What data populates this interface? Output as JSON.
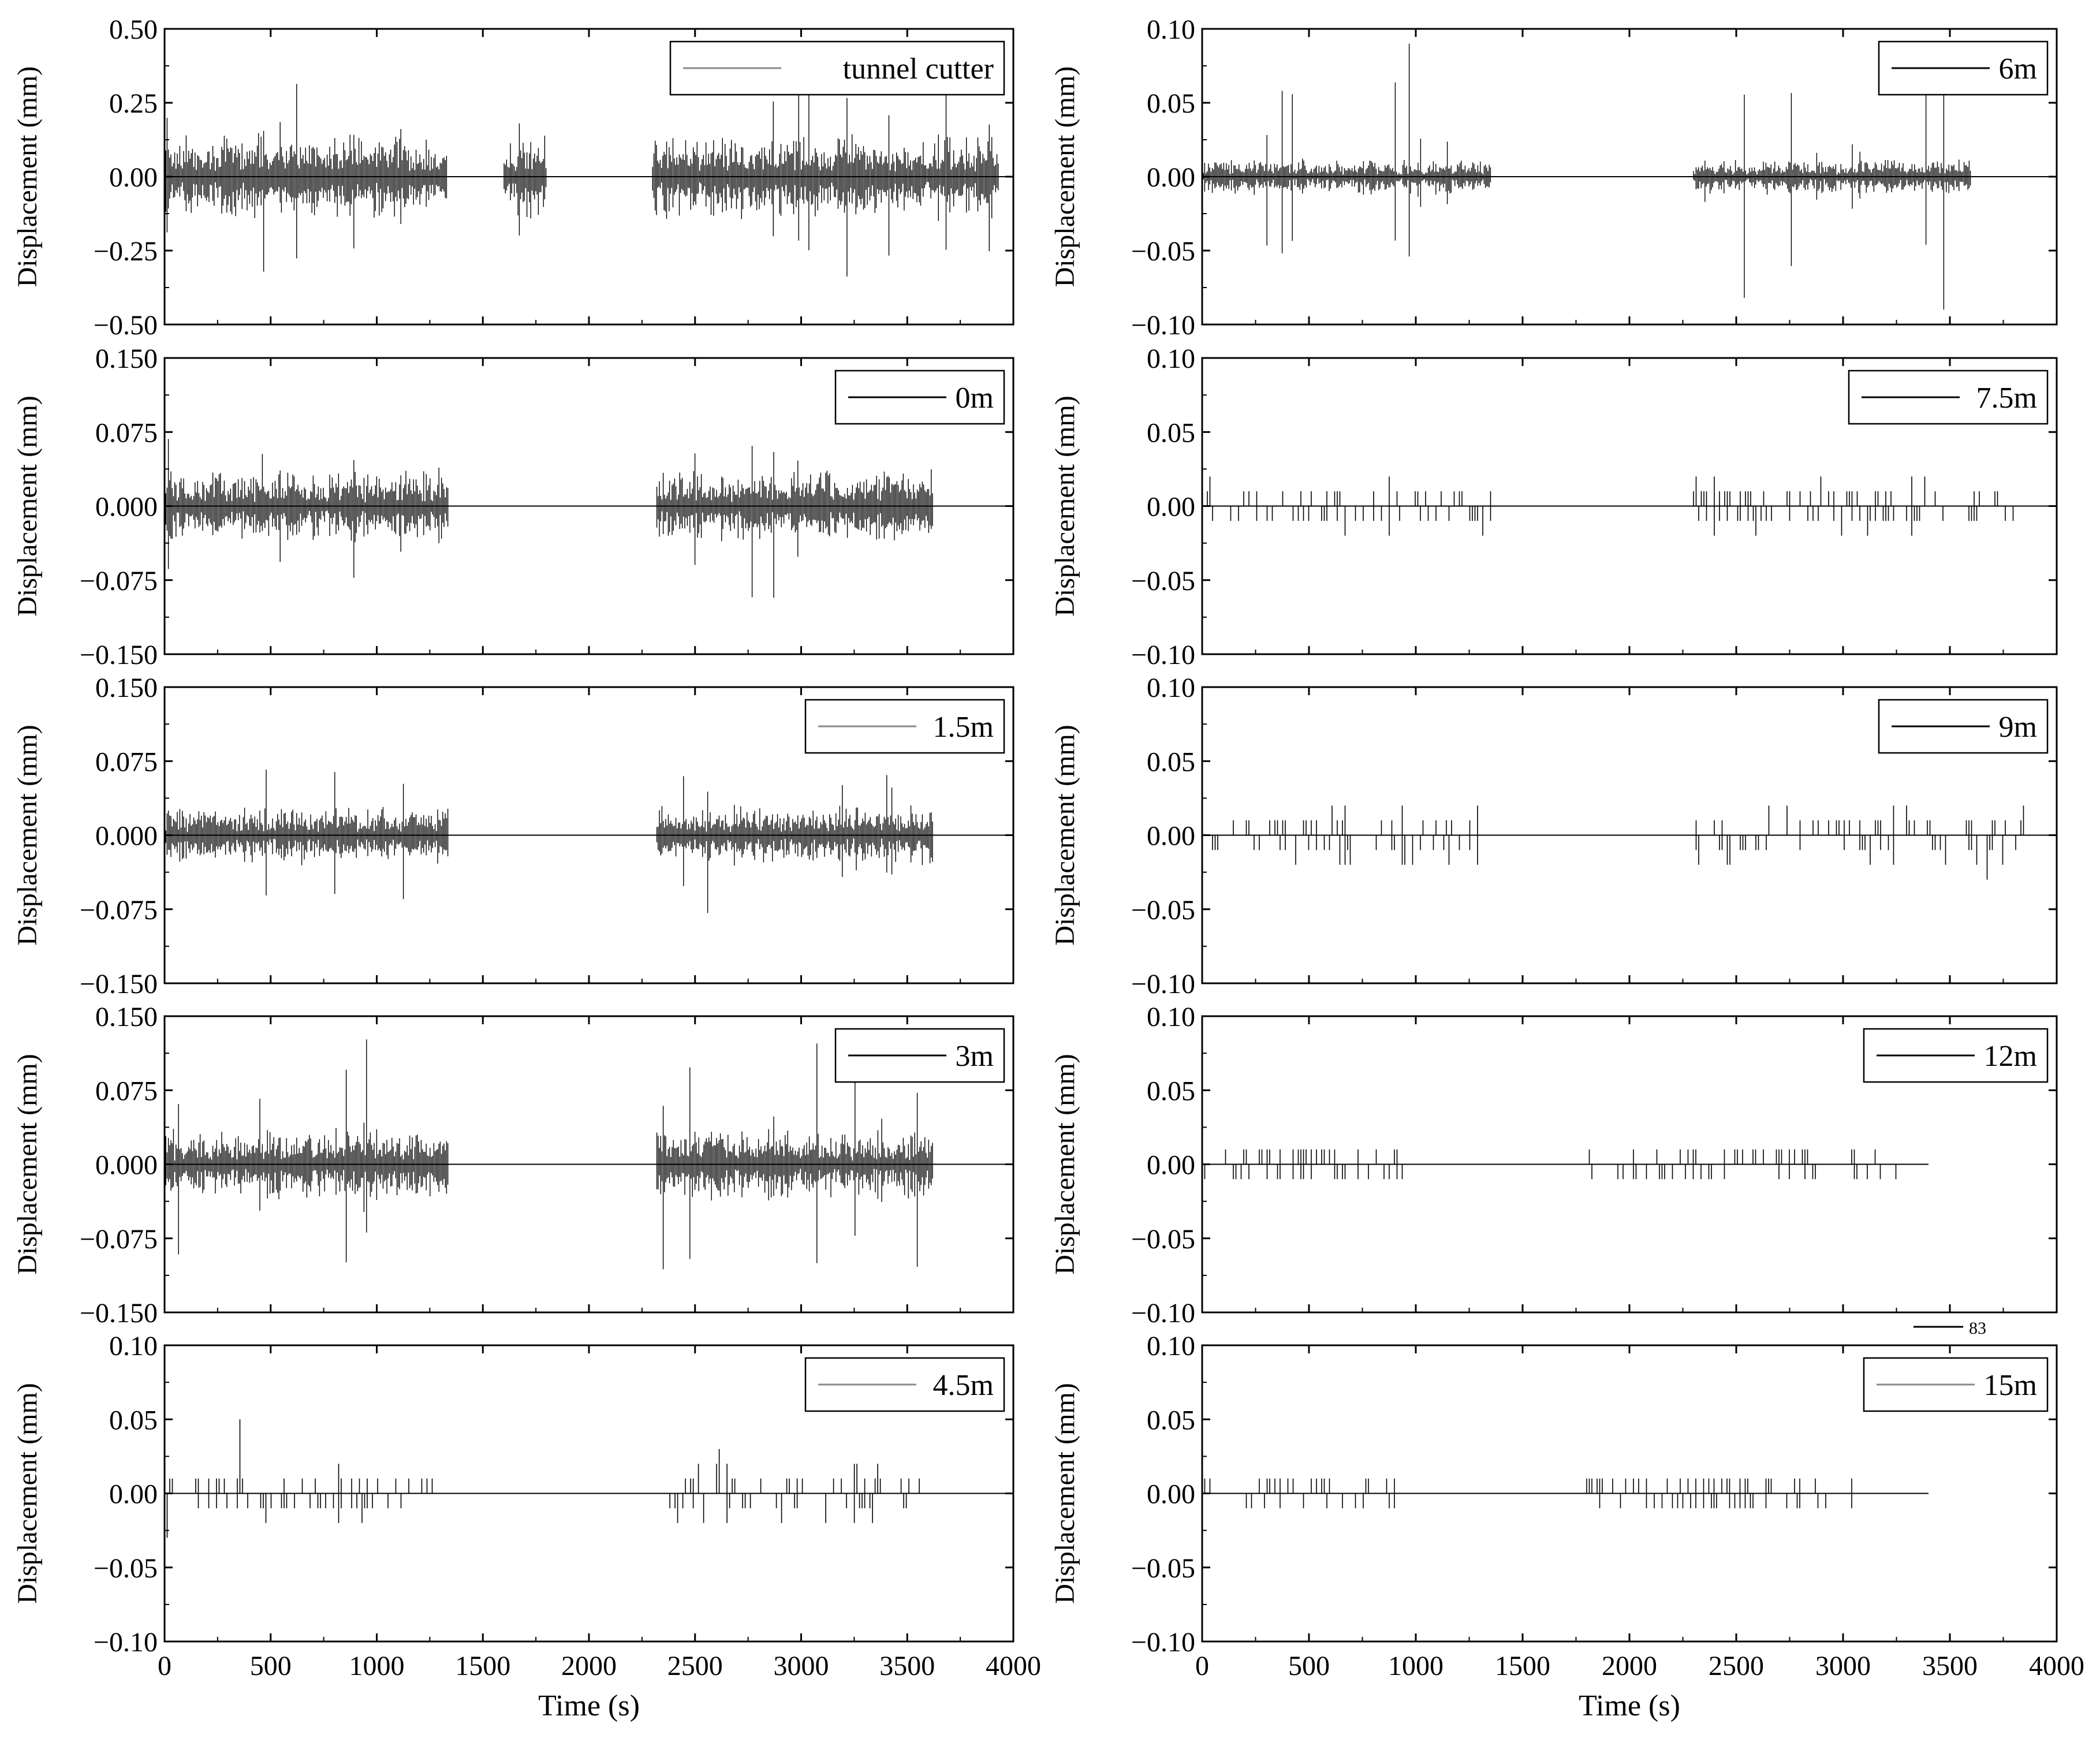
{
  "chart_data": [
    {
      "type": "line",
      "legend": "tunnel cutter",
      "ylabel": "Displacement (mm)",
      "ylim": [
        -0.5,
        0.5
      ],
      "yticks": [
        "−0.50",
        "−0.25",
        "0.00",
        "0.25",
        "0.50"
      ],
      "xlim": [
        0,
        4000
      ],
      "xticks": [
        "0",
        "500",
        "1000",
        "1500",
        "2000",
        "2500",
        "3000",
        "3500",
        "4000"
      ],
      "xlabel": "",
      "active_segments": [
        [
          0,
          1330
        ],
        [
          1600,
          1800
        ],
        [
          2300,
          3930
        ]
      ],
      "peak": 0.35,
      "typical": 0.12,
      "trace": "dense"
    },
    {
      "type": "line",
      "legend": "0m",
      "ylabel": "Displacement (mm)",
      "ylim": [
        -0.15,
        0.15
      ],
      "yticks": [
        "−0.150",
        "−0.075",
        "0.000",
        "0.075",
        "0.150"
      ],
      "xlim": [
        0,
        4000
      ],
      "xticks": [
        "0",
        "500",
        "1000",
        "1500",
        "2000",
        "2500",
        "3000",
        "3500",
        "4000"
      ],
      "xlabel": "",
      "active_segments": [
        [
          0,
          1340
        ],
        [
          2320,
          3620
        ]
      ],
      "peak": 0.11,
      "typical": 0.03,
      "trace": "dense"
    },
    {
      "type": "line",
      "legend": "1.5m",
      "ylabel": "Displacement (mm)",
      "ylim": [
        -0.15,
        0.15
      ],
      "yticks": [
        "−0.150",
        "−0.075",
        "0.000",
        "0.075",
        "0.150"
      ],
      "xlim": [
        0,
        4000
      ],
      "xticks": [
        "0",
        "500",
        "1000",
        "1500",
        "2000",
        "2500",
        "3000",
        "3500",
        "4000"
      ],
      "xlabel": "",
      "active_segments": [
        [
          0,
          1340
        ],
        [
          2320,
          3620
        ]
      ],
      "peak": 0.1,
      "typical": 0.025,
      "trace": "dense"
    },
    {
      "type": "line",
      "legend": "3m",
      "ylabel": "Displacement (mm)",
      "ylim": [
        -0.15,
        0.15
      ],
      "yticks": [
        "−0.150",
        "−0.075",
        "0.000",
        "0.075",
        "0.150"
      ],
      "xlim": [
        0,
        4000
      ],
      "xticks": [
        "0",
        "500",
        "1000",
        "1500",
        "2000",
        "2500",
        "3000",
        "3500",
        "4000"
      ],
      "xlabel": "",
      "active_segments": [
        [
          0,
          1340
        ],
        [
          2320,
          3620
        ]
      ],
      "peak": 0.13,
      "typical": 0.03,
      "trace": "dense"
    },
    {
      "type": "line",
      "legend": "4.5m",
      "ylabel": "Displacement (mm)",
      "ylim": [
        -0.1,
        0.1
      ],
      "yticks": [
        "−0.10",
        "−0.05",
        "0.00",
        "0.05",
        "0.10"
      ],
      "xlim": [
        0,
        4000
      ],
      "xticks": [
        "0",
        "500",
        "1000",
        "1500",
        "2000",
        "2500",
        "3000",
        "3500",
        "4000"
      ],
      "xlabel": "Time (s)",
      "active_segments": [
        [
          0,
          1340
        ],
        [
          2320,
          3600
        ]
      ],
      "peak": 0.05,
      "typical": 0.01,
      "trace": "sparse"
    },
    {
      "type": "line",
      "legend": "6m",
      "ylabel": "Displacement (mm)",
      "ylim": [
        -0.1,
        0.1
      ],
      "yticks": [
        "−0.10",
        "−0.05",
        "0.00",
        "0.05",
        "0.10"
      ],
      "xlim": [
        0,
        4000
      ],
      "xticks": [
        "0",
        "500",
        "1000",
        "1500",
        "2000",
        "2500",
        "3000",
        "3500",
        "4000"
      ],
      "xlabel": "",
      "active_segments": [
        [
          0,
          1350
        ],
        [
          2300,
          3600
        ]
      ],
      "peak": 0.09,
      "typical": 0.01,
      "trace": "dense"
    },
    {
      "type": "line",
      "legend": "7.5m",
      "ylabel": "Displacement (mm)",
      "ylim": [
        -0.1,
        0.1
      ],
      "yticks": [
        "−0.10",
        "−0.05",
        "0.00",
        "0.05",
        "0.10"
      ],
      "xlim": [
        0,
        4000
      ],
      "xticks": [
        "0",
        "500",
        "1000",
        "1500",
        "2000",
        "2500",
        "3000",
        "3500",
        "4000"
      ],
      "xlabel": "",
      "active_segments": [
        [
          0,
          1350
        ],
        [
          2300,
          3800
        ]
      ],
      "peak": 0.02,
      "typical": 0.01,
      "trace": "sparse"
    },
    {
      "type": "line",
      "legend": "9m",
      "ylabel": "Displacement (mm)",
      "ylim": [
        -0.1,
        0.1
      ],
      "yticks": [
        "−0.10",
        "−0.05",
        "0.00",
        "0.05",
        "0.10"
      ],
      "xlim": [
        0,
        4000
      ],
      "xticks": [
        "0",
        "500",
        "1000",
        "1500",
        "2000",
        "2500",
        "3000",
        "3500",
        "4000"
      ],
      "xlabel": "",
      "active_segments": [
        [
          0,
          1350
        ],
        [
          2300,
          3850
        ]
      ],
      "peak": 0.03,
      "typical": 0.01,
      "trace": "sparse"
    },
    {
      "type": "line",
      "legend": "12m",
      "ylabel": "Displacement (mm)",
      "ylim": [
        -0.1,
        0.1
      ],
      "yticks": [
        "−0.10",
        "−0.05",
        "0.00",
        "0.05",
        "0.10"
      ],
      "xlim": [
        0,
        4000
      ],
      "xticks": [
        "0",
        "500",
        "1000",
        "1500",
        "2000",
        "2500",
        "3000",
        "3500",
        "4000"
      ],
      "xlabel": "",
      "active_segments": [
        [
          0,
          950
        ],
        [
          1800,
          3250
        ]
      ],
      "peak": 0.01,
      "typical": 0.01,
      "trace": "sparse",
      "baseline_end": 3400
    },
    {
      "type": "line",
      "legend": "15m",
      "ylabel": "Displacement (mm)",
      "ylim": [
        -0.1,
        0.1
      ],
      "yticks": [
        "−0.10",
        "−0.05",
        "0.00",
        "0.05",
        "0.10"
      ],
      "xlim": [
        0,
        4000
      ],
      "xticks": [
        "0",
        "500",
        "1000",
        "1500",
        "2000",
        "2500",
        "3000",
        "3500",
        "4000"
      ],
      "xlabel": "Time (s)",
      "active_segments": [
        [
          0,
          900
        ],
        [
          1800,
          3100
        ]
      ],
      "peak": 0.01,
      "typical": 0.01,
      "trace": "sparse",
      "baseline_end": 3400
    }
  ],
  "annotation": {
    "text": "83"
  },
  "colors": {
    "trace": "#000000",
    "axes": "#000000",
    "background": "#ffffff",
    "legend_line_light": "#8a8a8a"
  }
}
